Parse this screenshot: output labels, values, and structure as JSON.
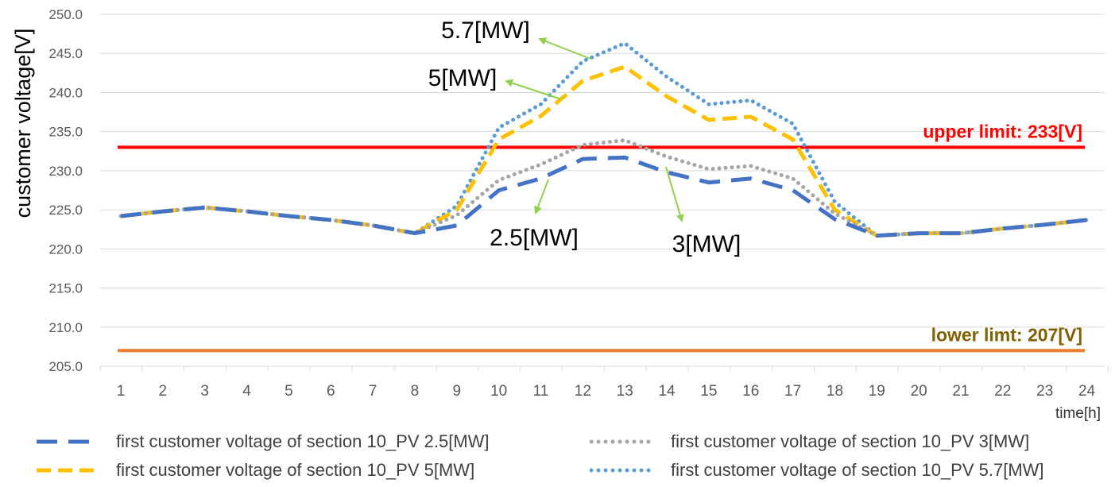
{
  "chart_data": {
    "type": "line",
    "ylabel": "customer voltage[V]",
    "xlabel": "time[h]",
    "ylim": [
      205,
      250
    ],
    "yticks": [
      "205.0",
      "210.0",
      "215.0",
      "220.0",
      "225.0",
      "230.0",
      "235.0",
      "240.0",
      "245.0",
      "250.0"
    ],
    "categories": [
      "1",
      "2",
      "3",
      "4",
      "5",
      "6",
      "7",
      "8",
      "9",
      "10",
      "11",
      "12",
      "13",
      "14",
      "15",
      "16",
      "17",
      "18",
      "19",
      "20",
      "21",
      "22",
      "23",
      "24"
    ],
    "grid": true,
    "series": [
      {
        "name": "first customer voltage of section 10_PV 2.5[MW]",
        "color": "#4472C4",
        "dash": "dash-long",
        "values": [
          224.2,
          224.8,
          225.3,
          224.8,
          224.2,
          223.7,
          223.0,
          222.0,
          223.0,
          227.5,
          229.0,
          231.5,
          231.7,
          229.8,
          228.5,
          229.0,
          227.5,
          223.8,
          221.7,
          222.0,
          222.0,
          222.6,
          223.1,
          223.7
        ]
      },
      {
        "name": "first customer voltage of section 10_PV 3[MW]",
        "color": "#A5A5A5",
        "dash": "dot",
        "values": [
          224.2,
          224.8,
          225.3,
          224.8,
          224.2,
          223.7,
          223.0,
          222.0,
          224.3,
          228.8,
          230.8,
          233.3,
          233.9,
          231.8,
          230.2,
          230.6,
          229.0,
          224.5,
          221.7,
          222.0,
          222.0,
          222.6,
          223.1,
          223.7
        ]
      },
      {
        "name": "first customer voltage of section 10_PV 5[MW]",
        "color": "#FFC000",
        "dash": "dash",
        "values": [
          224.2,
          224.8,
          225.3,
          224.8,
          224.2,
          223.7,
          223.0,
          222.0,
          225.0,
          234.0,
          237.0,
          241.5,
          243.3,
          239.5,
          236.5,
          236.9,
          234.0,
          225.0,
          221.7,
          222.0,
          222.0,
          222.6,
          223.1,
          223.7
        ]
      },
      {
        "name": "first customer voltage of section 10_PV 5.7[MW]",
        "color": "#5B9BD5",
        "dash": "dot",
        "values": [
          224.2,
          224.8,
          225.3,
          224.8,
          224.2,
          223.7,
          223.0,
          222.0,
          225.5,
          235.5,
          238.5,
          244.0,
          246.3,
          242.0,
          238.5,
          239.0,
          236.0,
          226.0,
          221.7,
          222.0,
          222.0,
          222.6,
          223.1,
          223.7
        ]
      }
    ],
    "limits": [
      {
        "label": "upper limit: 233[V]",
        "value": 233,
        "color": "#FF0000",
        "label_color": "#FF0000"
      },
      {
        "label": "lower limt: 207[V]",
        "value": 207,
        "color": "#ED7D31",
        "label_color": "#806000"
      }
    ],
    "annotations": [
      {
        "text": "5.7[MW]",
        "arrow_color": "#92D050"
      },
      {
        "text": "5[MW]",
        "arrow_color": "#92D050"
      },
      {
        "text": "2.5[MW]",
        "arrow_color": "#92D050"
      },
      {
        "text": "3[MW]",
        "arrow_color": "#92D050"
      }
    ],
    "legend_position": "bottom"
  }
}
